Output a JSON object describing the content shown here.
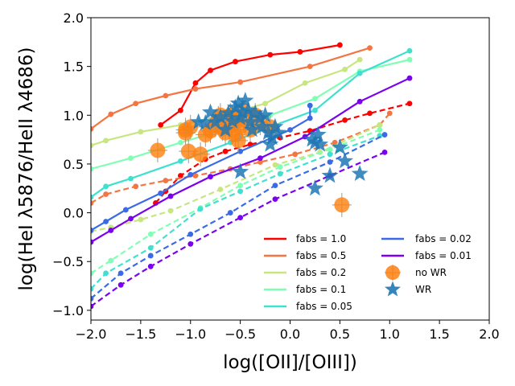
{
  "chart_data": {
    "type": "scatter",
    "xlabel": "log([OII]/[OIII])",
    "ylabel": "log(HeI λ5876/HeII λ4686)",
    "xlim": [
      -2.0,
      2.0
    ],
    "ylim": [
      -1.1,
      2.0
    ],
    "xticks": [
      -2.0,
      -1.5,
      -1.0,
      -0.5,
      0.0,
      0.5,
      1.0,
      1.5,
      2.0
    ],
    "yticks": [
      -1.0,
      -0.5,
      0.0,
      0.5,
      1.0,
      1.5,
      2.0
    ],
    "tick_labels_x": [
      "−2.0",
      "−1.5",
      "−1.0",
      "−0.5",
      "0.0",
      "0.5",
      "1.0",
      "1.5",
      "2.0"
    ],
    "tick_labels_y": [
      "−1.0",
      "−0.5",
      "0.0",
      "0.5",
      "1.0",
      "1.5",
      "2.0"
    ],
    "legend_position": "lower-right",
    "series": [
      {
        "name": "fabs = 1.0",
        "color": "#ff0000",
        "solid": [
          [
            -1.3,
            0.9
          ],
          [
            -1.1,
            1.05
          ],
          [
            -0.95,
            1.33
          ],
          [
            -0.8,
            1.46
          ],
          [
            -0.55,
            1.55
          ],
          [
            -0.2,
            1.62
          ],
          [
            0.1,
            1.65
          ],
          [
            0.5,
            1.72
          ]
        ],
        "dashed": [
          [
            -1.35,
            0.1
          ],
          [
            -1.25,
            0.22
          ],
          [
            -1.1,
            0.38
          ],
          [
            -0.85,
            0.55
          ],
          [
            -0.65,
            0.63
          ],
          [
            -0.4,
            0.7
          ],
          [
            -0.1,
            0.77
          ],
          [
            0.2,
            0.84
          ],
          [
            0.55,
            0.95
          ],
          [
            0.8,
            1.02
          ],
          [
            1.2,
            1.12
          ]
        ]
      },
      {
        "name": "fabs = 0.5",
        "color": "#f57542",
        "solid": [
          [
            -2.0,
            0.86
          ],
          [
            -1.8,
            1.01
          ],
          [
            -1.55,
            1.12
          ],
          [
            -1.25,
            1.2
          ],
          [
            -0.95,
            1.27
          ],
          [
            -0.5,
            1.34
          ],
          [
            0.2,
            1.5
          ],
          [
            0.8,
            1.69
          ]
        ],
        "dashed": [
          [
            -2.0,
            0.1
          ],
          [
            -1.85,
            0.19
          ],
          [
            -1.55,
            0.27
          ],
          [
            -1.25,
            0.33
          ],
          [
            -0.95,
            0.38
          ],
          [
            -0.6,
            0.45
          ],
          [
            -0.3,
            0.52
          ],
          [
            0.05,
            0.6
          ],
          [
            0.45,
            0.72
          ],
          [
            0.9,
            0.9
          ],
          [
            1.0,
            1.02
          ]
        ]
      },
      {
        "name": "fabs = 0.2",
        "color": "#c8e680",
        "solid": [
          [
            -2.0,
            0.69
          ],
          [
            -1.85,
            0.74
          ],
          [
            -1.5,
            0.83
          ],
          [
            -1.1,
            0.9
          ],
          [
            -0.7,
            0.99
          ],
          [
            -0.25,
            1.12
          ],
          [
            0.15,
            1.33
          ],
          [
            0.55,
            1.47
          ],
          [
            0.7,
            1.57
          ]
        ],
        "dashed": [
          [
            -2.0,
            -0.19
          ],
          [
            -1.8,
            -0.15
          ],
          [
            -1.5,
            -0.07
          ],
          [
            -1.2,
            0.02
          ],
          [
            -0.7,
            0.24
          ],
          [
            -0.15,
            0.49
          ],
          [
            0.3,
            0.62
          ],
          [
            0.9,
            0.9
          ]
        ]
      },
      {
        "name": "fabs = 0.1",
        "color": "#80ffb4",
        "solid": [
          [
            -2.0,
            0.45
          ],
          [
            -1.6,
            0.56
          ],
          [
            -1.1,
            0.72
          ],
          [
            -0.6,
            0.87
          ],
          [
            -0.2,
            1.0
          ],
          [
            0.25,
            1.17
          ],
          [
            0.7,
            1.45
          ],
          [
            1.2,
            1.57
          ]
        ],
        "dashed": [
          [
            -2.0,
            -0.62
          ],
          [
            -1.8,
            -0.49
          ],
          [
            -1.4,
            -0.22
          ],
          [
            -0.9,
            0.05
          ],
          [
            -0.5,
            0.28
          ],
          [
            -0.1,
            0.47
          ],
          [
            0.4,
            0.65
          ],
          [
            0.9,
            0.85
          ]
        ]
      },
      {
        "name": "fabs = 0.05",
        "color": "#40e0d0",
        "solid": [
          [
            -2.0,
            0.16
          ],
          [
            -1.85,
            0.27
          ],
          [
            -1.6,
            0.35
          ],
          [
            -1.1,
            0.53
          ],
          [
            -0.6,
            0.72
          ],
          [
            -0.2,
            0.88
          ],
          [
            0.25,
            1.05
          ],
          [
            0.7,
            1.43
          ],
          [
            1.2,
            1.66
          ]
        ],
        "dashed": [
          [
            -2.0,
            -0.78
          ],
          [
            -1.85,
            -0.62
          ],
          [
            -1.4,
            -0.36
          ],
          [
            -0.9,
            0.04
          ],
          [
            -0.5,
            0.22
          ],
          [
            -0.1,
            0.4
          ],
          [
            0.4,
            0.6
          ],
          [
            0.9,
            0.79
          ]
        ]
      },
      {
        "name": "fabs = 0.02",
        "color": "#3a6be6",
        "solid": [
          [
            -2.0,
            -0.18
          ],
          [
            -1.85,
            -0.09
          ],
          [
            -1.65,
            0.03
          ],
          [
            -1.3,
            0.2
          ],
          [
            -1.0,
            0.39
          ],
          [
            -0.5,
            0.63
          ],
          [
            0.0,
            0.85
          ],
          [
            0.2,
            0.97
          ],
          [
            0.2,
            1.1
          ]
        ],
        "dashed": [
          [
            -2.0,
            -0.88
          ],
          [
            -1.7,
            -0.62
          ],
          [
            -1.4,
            -0.44
          ],
          [
            -1.0,
            -0.22
          ],
          [
            -0.6,
            0.0
          ],
          [
            -0.15,
            0.28
          ],
          [
            0.4,
            0.52
          ],
          [
            0.95,
            0.8
          ]
        ]
      },
      {
        "name": "fabs = 0.01",
        "color": "#7a00f0",
        "solid": [
          [
            -2.0,
            -0.3
          ],
          [
            -1.8,
            -0.18
          ],
          [
            -1.6,
            -0.06
          ],
          [
            -1.2,
            0.17
          ],
          [
            -0.8,
            0.37
          ],
          [
            -0.3,
            0.56
          ],
          [
            0.15,
            0.78
          ],
          [
            0.7,
            1.14
          ],
          [
            1.2,
            1.38
          ]
        ],
        "dashed": [
          [
            -2.0,
            -0.96
          ],
          [
            -1.7,
            -0.74
          ],
          [
            -1.4,
            -0.55
          ],
          [
            -1.0,
            -0.32
          ],
          [
            -0.5,
            -0.05
          ],
          [
            -0.15,
            0.14
          ],
          [
            0.4,
            0.38
          ],
          [
            0.95,
            0.62
          ]
        ]
      }
    ],
    "no_wr": {
      "name": "no WR",
      "color": "#ff7f0e",
      "points": [
        [
          -1.33,
          0.64
        ],
        [
          -1.05,
          0.85
        ],
        [
          -1.0,
          0.88
        ],
        [
          -1.02,
          0.63
        ],
        [
          -0.9,
          0.6
        ],
        [
          -1.05,
          0.82
        ],
        [
          -0.85,
          0.8
        ],
        [
          -0.8,
          0.84
        ],
        [
          -0.75,
          0.9
        ],
        [
          -0.72,
          0.97
        ],
        [
          -0.7,
          1.0
        ],
        [
          -0.68,
          0.86
        ],
        [
          -0.65,
          0.82
        ],
        [
          -0.62,
          0.96
        ],
        [
          -0.6,
          1.0
        ],
        [
          -0.58,
          0.9
        ],
        [
          -0.55,
          0.8
        ],
        [
          -0.55,
          0.97
        ],
        [
          -0.52,
          0.74
        ],
        [
          -0.5,
          0.88
        ],
        [
          -0.48,
          1.05
        ],
        [
          -0.45,
          0.95
        ],
        [
          -0.4,
          0.85
        ],
        [
          -0.35,
          1.0
        ],
        [
          -0.3,
          0.92
        ],
        [
          -0.2,
          0.88
        ],
        [
          0.52,
          0.08
        ]
      ]
    },
    "wr": {
      "name": "WR",
      "color": "#1f77b4",
      "points": [
        [
          -0.92,
          0.93
        ],
        [
          -0.85,
          0.92
        ],
        [
          -0.8,
          1.03
        ],
        [
          -0.75,
          0.93
        ],
        [
          -0.7,
          0.98
        ],
        [
          -0.65,
          0.85
        ],
        [
          -0.62,
          1.02
        ],
        [
          -0.58,
          0.94
        ],
        [
          -0.55,
          1.08
        ],
        [
          -0.52,
          1.12
        ],
        [
          -0.5,
          0.97
        ],
        [
          -0.48,
          1.03
        ],
        [
          -0.45,
          1.15
        ],
        [
          -0.42,
          1.05
        ],
        [
          -0.4,
          0.93
        ],
        [
          -0.38,
          0.85
        ],
        [
          -0.35,
          1.02
        ],
        [
          -0.3,
          0.97
        ],
        [
          -0.28,
          0.88
        ],
        [
          -0.25,
          1.0
        ],
        [
          -0.22,
          0.82
        ],
        [
          -0.2,
          0.7
        ],
        [
          -0.18,
          0.77
        ],
        [
          -0.15,
          0.88
        ],
        [
          -0.12,
          0.82
        ],
        [
          -0.5,
          0.42
        ],
        [
          0.22,
          0.75
        ],
        [
          0.25,
          0.72
        ],
        [
          0.28,
          0.8
        ],
        [
          0.3,
          0.7
        ],
        [
          0.5,
          0.67
        ],
        [
          0.55,
          0.53
        ],
        [
          0.25,
          0.25
        ],
        [
          0.4,
          0.38
        ],
        [
          0.7,
          0.4
        ]
      ]
    }
  }
}
